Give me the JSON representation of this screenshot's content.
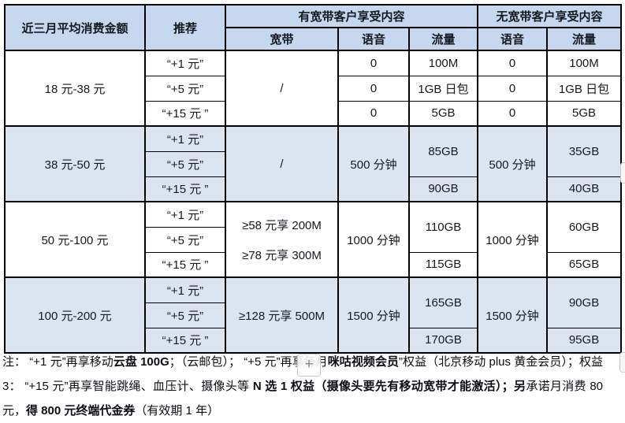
{
  "table": {
    "header": {
      "consumption": "近三月平均消费金额",
      "recommendation": "推荐",
      "with_broadband": "有宽带客户享受内容",
      "without_broadband": "无宽带客户享受内容",
      "sub_broadband": "宽带",
      "sub_voice_bb": "语音",
      "sub_data_bb": "流量",
      "sub_voice_nb": "语音",
      "sub_data_nb": "流量"
    },
    "groups": [
      {
        "range": "18 元-38 元",
        "recs": [
          "“+1 元”",
          "“+5 元”",
          "“+15 元 ”"
        ],
        "broadband": "/",
        "rows": [
          {
            "voice_bb": "0",
            "data_bb": "100M",
            "voice_nb": "0",
            "data_nb": "100M"
          },
          {
            "voice_bb": "0",
            "data_bb": "1GB 日包",
            "voice_nb": "0",
            "data_nb": "1GB 日包"
          },
          {
            "voice_bb": "0",
            "data_bb": "5GB",
            "voice_nb": "0",
            "data_nb": "5GB"
          }
        ]
      },
      {
        "range": "38 元-50 元",
        "recs": [
          "“+1 元”",
          "“+5 元”",
          "“+15 元 ”"
        ],
        "broadband": "/",
        "voice_bb": "500 分钟",
        "voice_nb": "500 分钟",
        "data_bb_12": "85GB",
        "data_bb_3": "90GB",
        "data_nb_12": "35GB",
        "data_nb_3": "40GB"
      },
      {
        "range": "50 元-100 元",
        "recs": [
          "“+1 元”",
          "“+5 元”",
          "“+15 元 ”"
        ],
        "broadband_line1": "≥58 元享 200M",
        "broadband_line2": "≥78 元享 300M",
        "voice_bb": "1000 分钟",
        "voice_nb": "1000 分钟",
        "data_bb_12": "110GB",
        "data_bb_3": "115GB",
        "data_nb_12": "60GB",
        "data_nb_3": "65GB"
      },
      {
        "range": "100 元-200 元",
        "recs": [
          "“+1 元”",
          "“+5 元”",
          "“+15 元 ”"
        ],
        "broadband": "≥128 元享 500M",
        "voice_bb": "1500 分钟",
        "voice_nb": "1500 分钟",
        "data_bb_12": "165GB",
        "data_bb_3": "170GB",
        "data_nb_12": "90GB",
        "data_nb_3": "95GB"
      }
    ]
  },
  "note": {
    "segments": [
      {
        "text": "注： “+1 元”再享移动",
        "bold": false
      },
      {
        "text": "云盘 100G",
        "bold": true
      },
      {
        "text": "；（云邮包）； “+5 元”再享每月",
        "bold": false
      },
      {
        "text": "咪咕视频会员",
        "bold": true
      },
      {
        "text": "”权益（北京移动 plus 黄金会员）；权益 3： “+15 元”再享智能跳绳、血压计、摄像头等 ",
        "bold": false
      },
      {
        "text": "N 选 1 权益（摄像头要先有移动宽带才能激活）；另",
        "bold": true
      },
      {
        "text": "承诺月消费 80 元，",
        "bold": false
      },
      {
        "text": "得 800 元终端代金券",
        "bold": true
      },
      {
        "text": "（有效期 1 年）",
        "bold": false
      }
    ]
  },
  "overlay": {
    "plus_button_label": "+"
  },
  "colors": {
    "header_bg": "#c5d8ef",
    "stripe_bg": "#dbe5f2",
    "border": "#000000"
  }
}
